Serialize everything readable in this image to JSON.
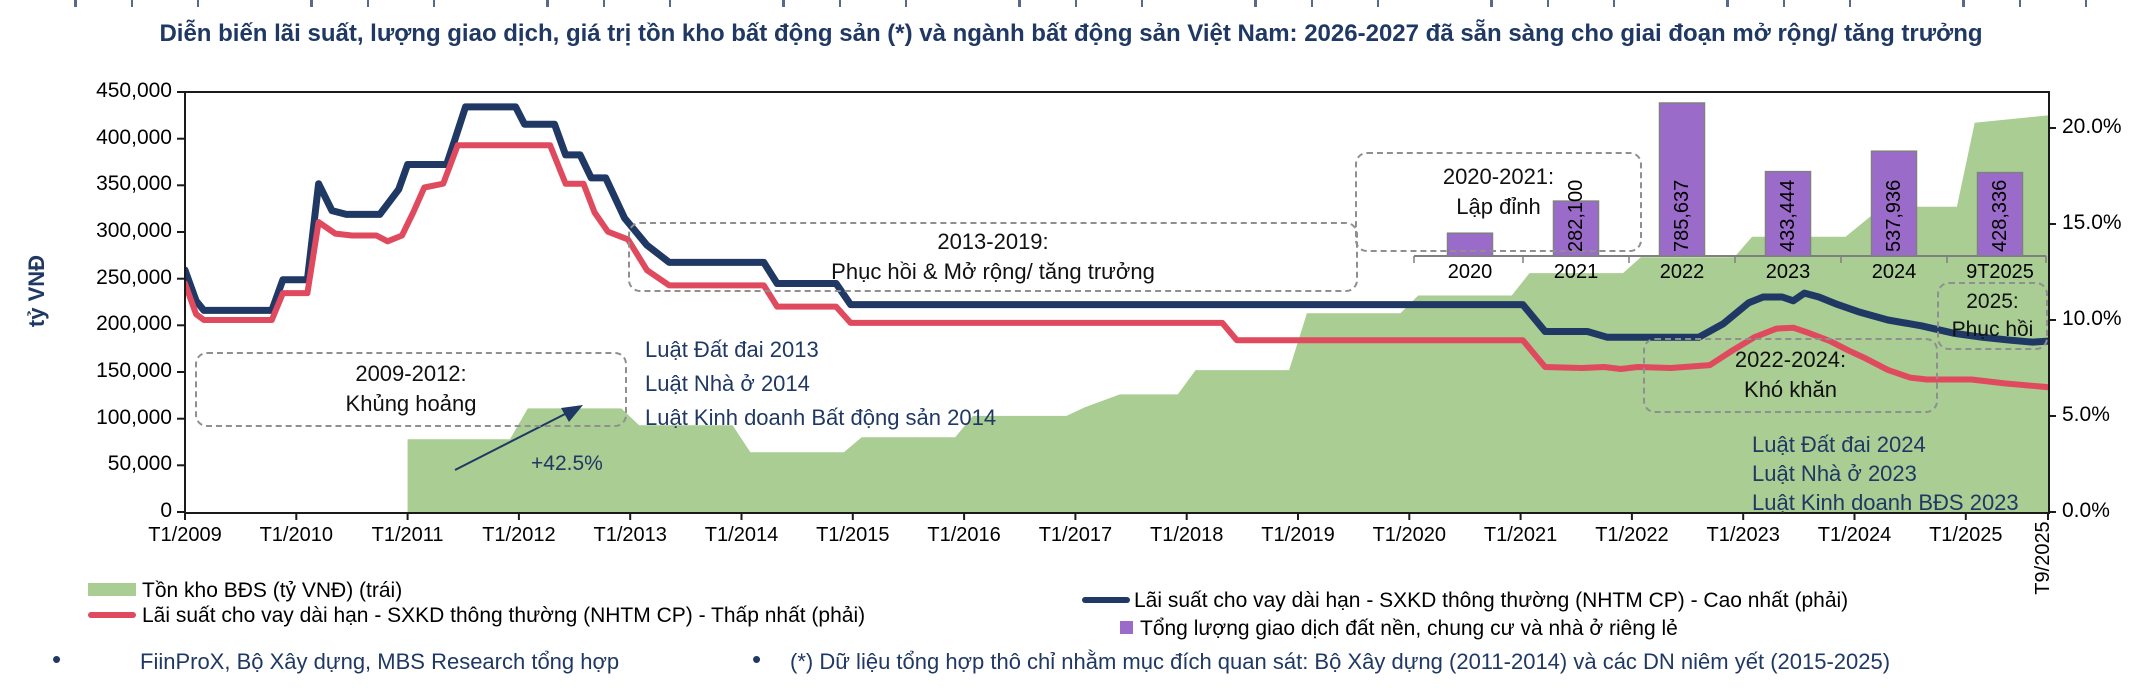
{
  "page": {
    "title": "Diễn biến lãi suất, lượng giao dịch, giá trị tồn kho bất động sản (*) và ngành bất động sản Việt Nam: 2026-2027 đã sẵn sàng cho giai đoạn mở rộng/ tăng trưởng"
  },
  "colors": {
    "accent_navy": "#1F3864",
    "line_high": "#1F3864",
    "line_low": "#E04A5E",
    "area_green": "#A9CD92",
    "bar_purple": "#9B6BC9",
    "bar_border": "#808080",
    "dashed_gray": "#8f8f8f"
  },
  "chart_data": [
    {
      "type": "area",
      "title": "Diễn biến lãi suất, lượng giao dịch, giá trị tồn kho bất động sản (*) và ngành bất động sản Việt Nam: 2026-2027 đã sẵn sàng cho giai đoạn mở rộng/ tăng trưởng",
      "x_axis": {
        "ticks": [
          "T1/2009",
          "T1/2010",
          "T1/2011",
          "T1/2012",
          "T1/2013",
          "T1/2014",
          "T1/2015",
          "T1/2016",
          "T1/2017",
          "T1/2018",
          "T1/2019",
          "T1/2020",
          "T1/2021",
          "T1/2022",
          "T1/2023",
          "T1/2024",
          "T1/2025"
        ],
        "end_label": "T9/2025",
        "range_years": [
          2009,
          2025.75
        ]
      },
      "y_left": {
        "label": "tỷ VNĐ",
        "min": 0,
        "max": 450000,
        "step": 50000,
        "tick_labels": [
          "450,000",
          "400,000",
          "350,000",
          "300,000",
          "250,000",
          "200,000",
          "150,000",
          "100,000",
          "50,000",
          "0"
        ]
      },
      "y_right": {
        "min": 0,
        "max": 20,
        "step": 5,
        "unit": "%",
        "tick_labels": [
          "20.0%",
          "15.0%",
          "10.0%",
          "5.0%",
          "0.0%"
        ]
      },
      "grid": false,
      "legend_position": "bottom",
      "series": [
        {
          "name": "Tồn kho BĐS (tỷ VNĐ) (trái)",
          "type": "area",
          "axis": "left",
          "color": "#A9CD92",
          "points": [
            [
              2011.0,
              78000
            ],
            [
              2011.92,
              78000
            ],
            [
              2012.08,
              111000
            ],
            [
              2012.92,
              111000
            ],
            [
              2013.08,
              93000
            ],
            [
              2013.92,
              93000
            ],
            [
              2014.08,
              64000
            ],
            [
              2014.92,
              64000
            ],
            [
              2015.08,
              80000
            ],
            [
              2015.92,
              80000
            ],
            [
              2016.08,
              103000
            ],
            [
              2016.92,
              103000
            ],
            [
              2017.08,
              112000
            ],
            [
              2017.4,
              126000
            ],
            [
              2017.92,
              126000
            ],
            [
              2018.08,
              152000
            ],
            [
              2018.92,
              152000
            ],
            [
              2019.08,
              213000
            ],
            [
              2019.92,
              213000
            ],
            [
              2020.08,
              232000
            ],
            [
              2020.92,
              232000
            ],
            [
              2021.08,
              256000
            ],
            [
              2021.92,
              256000
            ],
            [
              2022.08,
              273000
            ],
            [
              2022.92,
              273000
            ],
            [
              2023.08,
              295000
            ],
            [
              2023.92,
              295000
            ],
            [
              2024.25,
              327000
            ],
            [
              2024.92,
              327000
            ],
            [
              2025.08,
              417000
            ],
            [
              2025.74,
              425000
            ]
          ]
        },
        {
          "name": "Lãi suất cho vay dài hạn - SXKD thông thường (NHTM CP) - Cao nhất (phải)",
          "type": "line",
          "axis": "right",
          "color": "#1F3864",
          "points": [
            [
              2009.0,
              12.6
            ],
            [
              2009.1,
              11.0
            ],
            [
              2009.17,
              10.5
            ],
            [
              2009.78,
              10.5
            ],
            [
              2009.88,
              12.1
            ],
            [
              2010.1,
              12.1
            ],
            [
              2010.2,
              17.1
            ],
            [
              2010.32,
              15.7
            ],
            [
              2010.45,
              15.5
            ],
            [
              2010.75,
              15.5
            ],
            [
              2010.92,
              16.8
            ],
            [
              2011.0,
              18.1
            ],
            [
              2011.35,
              18.1
            ],
            [
              2011.42,
              19.3
            ],
            [
              2011.52,
              21.1
            ],
            [
              2011.97,
              21.1
            ],
            [
              2012.05,
              20.2
            ],
            [
              2012.32,
              20.2
            ],
            [
              2012.42,
              18.6
            ],
            [
              2012.55,
              18.6
            ],
            [
              2012.65,
              17.4
            ],
            [
              2012.78,
              17.4
            ],
            [
              2012.95,
              15.3
            ],
            [
              2013.15,
              13.9
            ],
            [
              2013.35,
              13.0
            ],
            [
              2014.2,
              13.0
            ],
            [
              2014.32,
              11.9
            ],
            [
              2014.85,
              11.9
            ],
            [
              2014.98,
              10.8
            ],
            [
              2021.02,
              10.8
            ],
            [
              2021.22,
              9.4
            ],
            [
              2021.6,
              9.4
            ],
            [
              2021.78,
              9.1
            ],
            [
              2022.6,
              9.1
            ],
            [
              2022.82,
              9.8
            ],
            [
              2023.05,
              10.9
            ],
            [
              2023.18,
              11.2
            ],
            [
              2023.35,
              11.2
            ],
            [
              2023.45,
              11.0
            ],
            [
              2023.55,
              11.4
            ],
            [
              2023.68,
              11.2
            ],
            [
              2023.85,
              10.8
            ],
            [
              2024.05,
              10.4
            ],
            [
              2024.3,
              10.0
            ],
            [
              2024.6,
              9.7
            ],
            [
              2024.9,
              9.3
            ],
            [
              2025.15,
              9.1
            ],
            [
              2025.4,
              8.95
            ],
            [
              2025.6,
              8.85
            ],
            [
              2025.74,
              8.9
            ]
          ]
        },
        {
          "name": "Lãi suất cho vay dài hạn - SXKD thông thường (NHTM CP) - Thấp nhất (phải)",
          "type": "line",
          "axis": "right",
          "color": "#E04A5E",
          "points": [
            [
              2009.0,
              11.9
            ],
            [
              2009.1,
              10.3
            ],
            [
              2009.17,
              10.0
            ],
            [
              2009.78,
              10.0
            ],
            [
              2009.88,
              11.4
            ],
            [
              2010.1,
              11.4
            ],
            [
              2010.2,
              15.1
            ],
            [
              2010.35,
              14.5
            ],
            [
              2010.5,
              14.4
            ],
            [
              2010.72,
              14.4
            ],
            [
              2010.82,
              14.1
            ],
            [
              2010.95,
              14.4
            ],
            [
              2011.05,
              15.6
            ],
            [
              2011.15,
              16.9
            ],
            [
              2011.32,
              17.1
            ],
            [
              2011.45,
              19.1
            ],
            [
              2012.28,
              19.1
            ],
            [
              2012.42,
              17.1
            ],
            [
              2012.58,
              17.1
            ],
            [
              2012.68,
              15.6
            ],
            [
              2012.8,
              14.6
            ],
            [
              2012.98,
              14.2
            ],
            [
              2013.15,
              12.6
            ],
            [
              2013.35,
              11.8
            ],
            [
              2014.2,
              11.8
            ],
            [
              2014.32,
              10.7
            ],
            [
              2014.85,
              10.7
            ],
            [
              2014.98,
              9.85
            ],
            [
              2018.32,
              9.85
            ],
            [
              2018.45,
              8.95
            ],
            [
              2021.02,
              8.95
            ],
            [
              2021.22,
              7.55
            ],
            [
              2021.55,
              7.5
            ],
            [
              2021.75,
              7.55
            ],
            [
              2021.9,
              7.45
            ],
            [
              2022.05,
              7.55
            ],
            [
              2022.35,
              7.5
            ],
            [
              2022.7,
              7.65
            ],
            [
              2022.9,
              8.4
            ],
            [
              2023.1,
              9.1
            ],
            [
              2023.3,
              9.55
            ],
            [
              2023.45,
              9.6
            ],
            [
              2023.6,
              9.3
            ],
            [
              2023.78,
              8.9
            ],
            [
              2023.95,
              8.4
            ],
            [
              2024.1,
              8.0
            ],
            [
              2024.3,
              7.4
            ],
            [
              2024.5,
              7.0
            ],
            [
              2024.65,
              6.9
            ],
            [
              2025.05,
              6.9
            ],
            [
              2025.35,
              6.7
            ],
            [
              2025.74,
              6.5
            ]
          ]
        }
      ],
      "annotations": {
        "crisis": {
          "line1": "2009-2012:",
          "line2": "Khủng hoảng"
        },
        "recovery": {
          "line1": "2013-2019:",
          "line2": "Phục hồi & Mở rộng/ tăng trưởng"
        },
        "peak": {
          "line1": "2020-2021:",
          "line2": "Lập đỉnh"
        },
        "difficult": {
          "line1": "2022-2024:",
          "line2": "Khó khăn"
        },
        "recovery2025": {
          "line1": "2025:",
          "line2": "Phục hồi"
        },
        "laws2013": {
          "line1": "Luật Đất đai 2013",
          "line2": "Luật Nhà ở 2014",
          "line3": "Luật Kinh doanh Bất động sản 2014"
        },
        "laws2023": {
          "line1": "Luật Đất đai 2024",
          "line2": "Luật Nhà ở 2023",
          "line3": "Luật Kinh doanh BĐS 2023"
        },
        "growth": "+42.5%"
      }
    },
    {
      "type": "bar",
      "name": "Tổng lượng giao dịch đất nền, chung cư và nhà ở riêng lẻ",
      "categories": [
        "2020",
        "2021",
        "2022",
        "2023",
        "2024",
        "9T2025"
      ],
      "values": [
        117000,
        282100,
        785637,
        433444,
        537936,
        428336
      ],
      "labels": [
        "",
        "282,100",
        "785,637",
        "433,444",
        "537,936",
        "428,336"
      ],
      "color": "#9B6BC9",
      "note": "2020 bar shown without a data label; value estimated from bar height"
    }
  ],
  "sources": [
    "FiinProX, Bộ Xây dựng, MBS Research tổng hợp",
    "(*) Dữ liệu tổng hợp thô chỉ nhằm mục đích quan sát: Bộ Xây dựng (2011-2014) và các DN niêm yết (2015-2025)"
  ]
}
